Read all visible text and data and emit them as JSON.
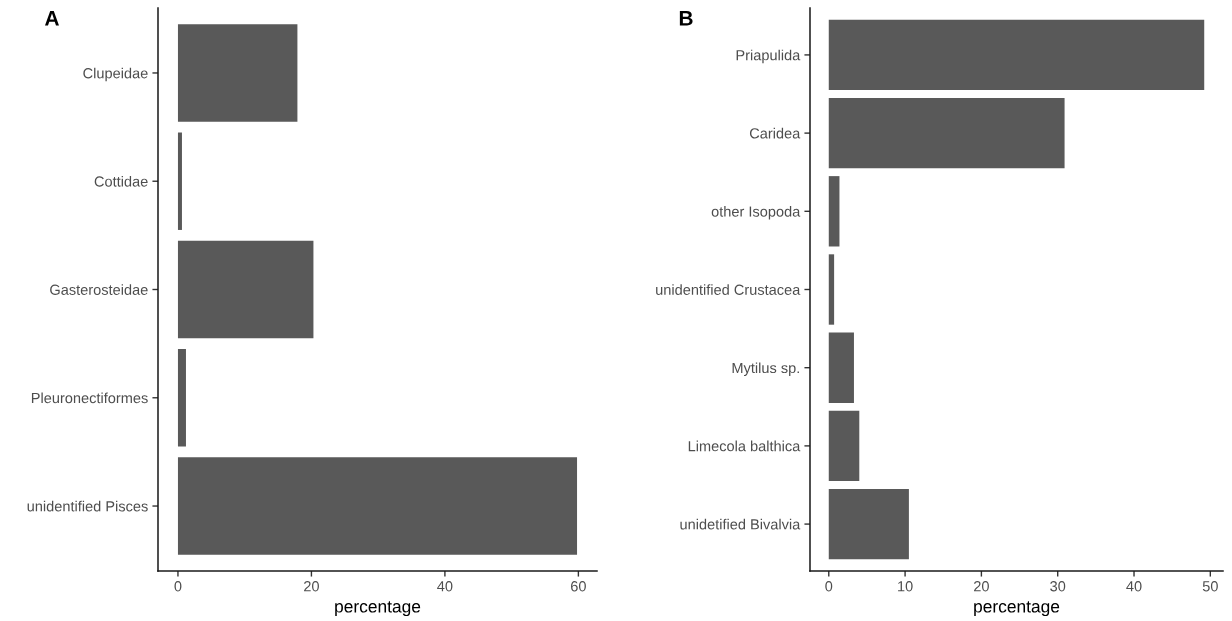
{
  "chart_data": [
    {
      "type": "bar",
      "orientation": "horizontal",
      "title": "A",
      "xlabel": "percentage",
      "categories": [
        "Clupeidae",
        "Cottidae",
        "Gasterosteidae",
        "Pleuronectiformes",
        "unidentified Pisces"
      ],
      "values": [
        17.9,
        0.6,
        20.3,
        1.2,
        59.8
      ],
      "color": "#595959",
      "xlim": [
        -2.99,
        62.79
      ],
      "xticks": [
        0,
        20,
        40,
        60
      ]
    },
    {
      "type": "bar",
      "orientation": "horizontal",
      "title": "B",
      "xlabel": "percentage",
      "categories": [
        "Priapulida",
        "Caridea",
        "other Isopoda",
        "unidentified Crustacea",
        "Mytilus sp.",
        "Limecola balthica",
        "unidetified Bivalvia"
      ],
      "values": [
        49.2,
        30.9,
        1.4,
        0.7,
        3.3,
        4.0,
        10.5
      ],
      "color": "#595959",
      "xlim": [
        -2.46,
        51.66
      ],
      "xticks": [
        0,
        10,
        20,
        30,
        40,
        50
      ]
    }
  ]
}
